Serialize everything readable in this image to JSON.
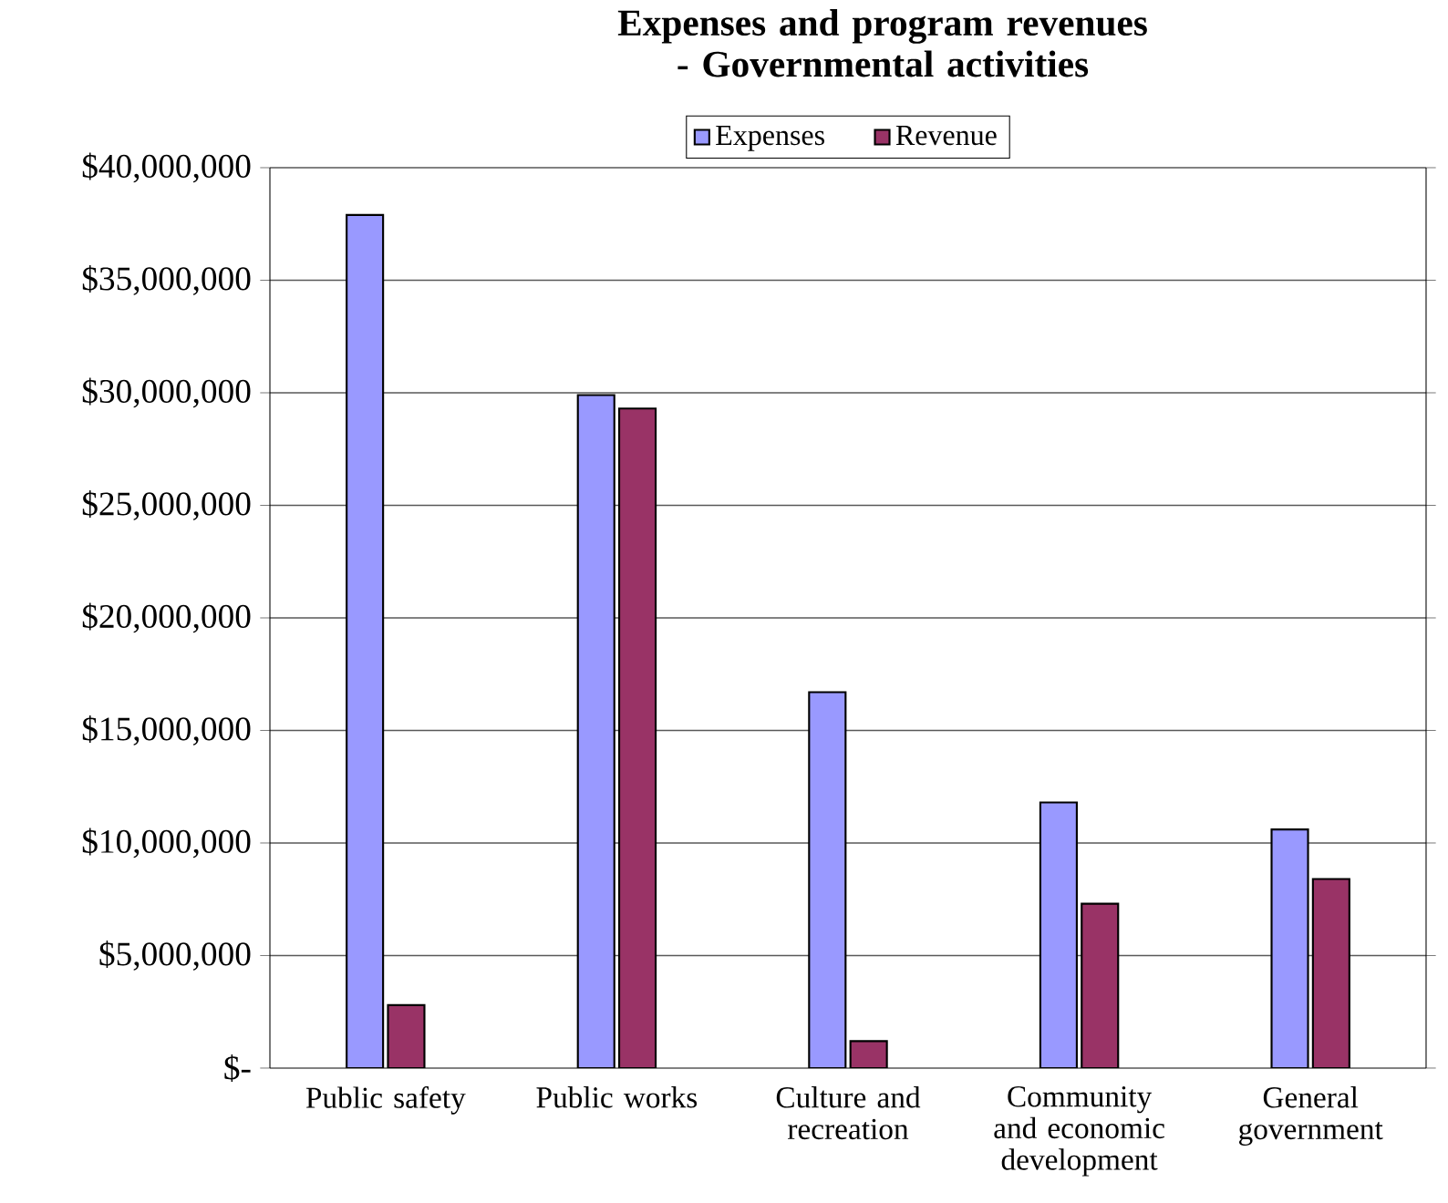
{
  "chart_data": {
    "type": "bar",
    "title": "Expenses and program revenues - Governmental activities",
    "categories": [
      "Public safety",
      "Public works",
      "Culture and recreation",
      "Community and economic development",
      "General government"
    ],
    "series": [
      {
        "name": "Expenses",
        "color": "#9999ff",
        "values": [
          37900000,
          29900000,
          16700000,
          11800000,
          10600000
        ]
      },
      {
        "name": "Revenue",
        "color": "#993366",
        "values": [
          2800000,
          29300000,
          1200000,
          7300000,
          8400000
        ]
      }
    ],
    "ylim": [
      0,
      40000000
    ],
    "yticks": [
      {
        "value": 0,
        "label": "$-"
      },
      {
        "value": 5000000,
        "label": "$5,000,000"
      },
      {
        "value": 10000000,
        "label": "$10,000,000"
      },
      {
        "value": 15000000,
        "label": "$15,000,000"
      },
      {
        "value": 20000000,
        "label": "$20,000,000"
      },
      {
        "value": 25000000,
        "label": "$25,000,000"
      },
      {
        "value": 30000000,
        "label": "$30,000,000"
      },
      {
        "value": 35000000,
        "label": "$35,000,000"
      },
      {
        "value": 40000000,
        "label": "$40,000,000"
      }
    ],
    "grid": "y",
    "legend": "top"
  }
}
